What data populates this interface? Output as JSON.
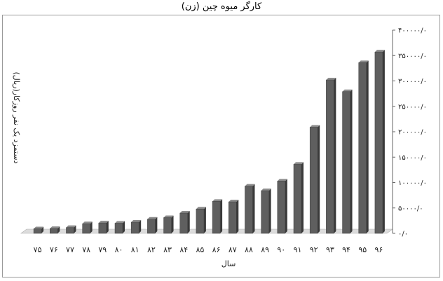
{
  "chart_data": {
    "type": "bar",
    "title": "کارگر میوه چین (زن)",
    "xlabel": "سال",
    "ylabel": "دستمزد یک نفر روزکار(ریال)",
    "categories": [
      "۷۵",
      "۷۶",
      "۷۷",
      "۷۸",
      "۷۹",
      "۸۰",
      "۸۱",
      "۸۲",
      "۸۳",
      "۸۴",
      "۸۵",
      "۸۶",
      "۸۷",
      "۸۸",
      "۸۹",
      "۹۰",
      "۹۱",
      "۹۲",
      "۹۳",
      "۹۴",
      "۹۵",
      "۹۶"
    ],
    "values": [
      9000,
      9500,
      11500,
      19000,
      20500,
      20000,
      22000,
      28000,
      31000,
      40000,
      48000,
      63000,
      62000,
      93000,
      84000,
      103000,
      136000,
      209000,
      302000,
      279000,
      336000,
      357000
    ],
    "yticks": [
      0,
      50000,
      100000,
      150000,
      200000,
      250000,
      300000,
      350000,
      400000
    ],
    "ytick_labels": [
      "۰/۰",
      "۵۰۰۰۰/۰",
      "۱۰۰۰۰۰/۰",
      "۱۵۰۰۰۰/۰",
      "۲۰۰۰۰۰/۰",
      "۲۵۰۰۰۰/۰",
      "۳۰۰۰۰۰/۰",
      "۳۵۰۰۰۰/۰",
      "۴۰۰۰۰۰/۰"
    ],
    "ylim": [
      0,
      400000
    ],
    "grid": false,
    "legend": "none",
    "colors": {
      "bar_front": "#5f5f5f",
      "bar_side": "#3a3a3a",
      "bar_top": "#8c8c8c",
      "floor": "#dcdcdc"
    }
  }
}
